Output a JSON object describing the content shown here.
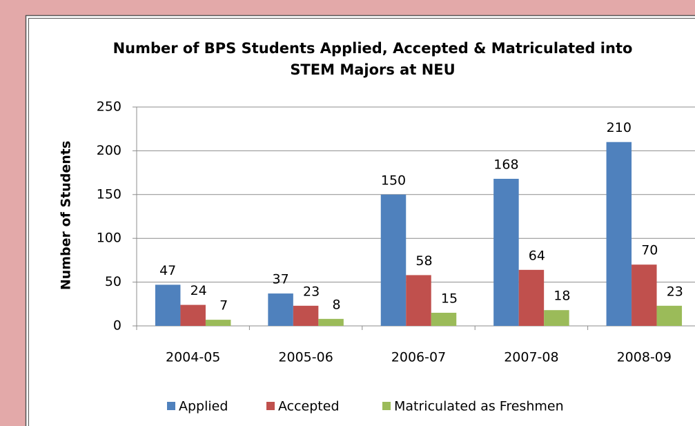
{
  "chart_data": {
    "type": "bar",
    "title": [
      "Number of BPS Students Applied, Accepted & Matriculated into",
      "STEM Majors at NEU"
    ],
    "y_label": "Number of Students",
    "categories": [
      "2004-05",
      "2005-06",
      "2006-07",
      "2007-08",
      "2008-09"
    ],
    "series": [
      {
        "name": "Applied",
        "color": "#4f81bd",
        "values": [
          47,
          37,
          150,
          168,
          210
        ]
      },
      {
        "name": "Accepted",
        "color": "#c0504d",
        "values": [
          24,
          23,
          58,
          64,
          70
        ]
      },
      {
        "name": "Matriculated as Freshmen",
        "color": "#9bbb59",
        "values": [
          7,
          8,
          15,
          18,
          23
        ]
      }
    ],
    "ylim": [
      0,
      250
    ],
    "yticks": [
      0,
      50,
      100,
      150,
      200,
      250
    ],
    "grid": true,
    "legend": "bottom"
  }
}
